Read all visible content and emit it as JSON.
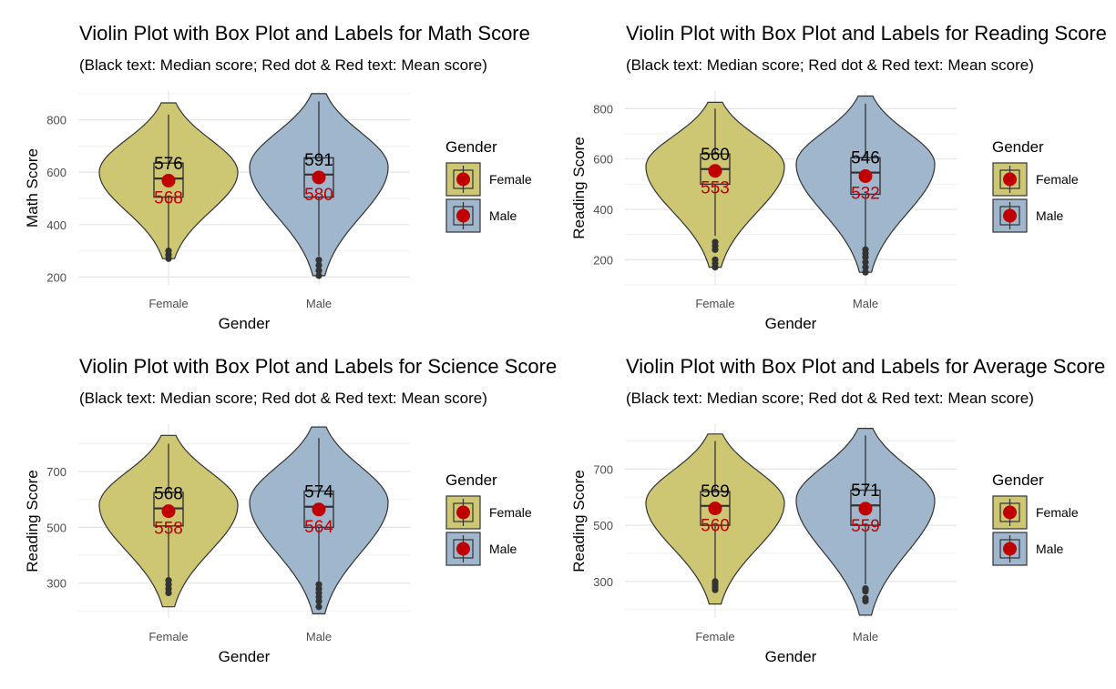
{
  "colors": {
    "female_fill": "#CDC673",
    "male_fill": "#9FB6CD",
    "mean": "#C00000",
    "outline": "#333333",
    "grid_major": "#E5E5E5",
    "grid_minor": "#F2F2F2"
  },
  "chart_data": [
    {
      "type": "violin",
      "title": "Violin Plot with Box Plot and Labels for Math Score",
      "subtitle": "(Black text: Median score; Red dot & Red text: Mean score)",
      "xlabel": "Gender",
      "ylabel": "Math Score",
      "categories": [
        "Female",
        "Male"
      ],
      "yticks": [
        200,
        400,
        600,
        800
      ],
      "ylim": [
        170,
        910
      ],
      "grid": true,
      "legend": {
        "title": "Gender",
        "position": "right",
        "entries": [
          "Female",
          "Male"
        ]
      },
      "series": [
        {
          "name": "Female",
          "median": 576,
          "median_label": "576",
          "mean": 568,
          "mean_label": "568",
          "q1": 505,
          "q3": 635,
          "whisker_low": 300,
          "whisker_high": 820,
          "min": 270,
          "max": 865,
          "outliers": [
            270,
            285,
            300
          ],
          "peak": 600
        },
        {
          "name": "Male",
          "median": 591,
          "median_label": "591",
          "mean": 580,
          "mean_label": "580",
          "q1": 505,
          "q3": 655,
          "whisker_low": 280,
          "whisker_high": 870,
          "min": 205,
          "max": 900,
          "outliers": [
            205,
            225,
            245,
            265
          ],
          "peak": 620
        }
      ]
    },
    {
      "type": "violin",
      "title": "Violin Plot with Box Plot and Labels for Reading Score",
      "subtitle": "(Black text: Median score; Red dot & Red text: Mean score)",
      "xlabel": "Gender",
      "ylabel": "Reading Score",
      "categories": [
        "Female",
        "Male"
      ],
      "yticks": [
        200,
        400,
        600,
        800
      ],
      "ylim": [
        100,
        870
      ],
      "grid": true,
      "legend": {
        "title": "Gender",
        "position": "right",
        "entries": [
          "Female",
          "Male"
        ]
      },
      "series": [
        {
          "name": "Female",
          "median": 560,
          "median_label": "560",
          "mean": 553,
          "mean_label": "553",
          "q1": 500,
          "q3": 620,
          "whisker_low": 295,
          "whisker_high": 800,
          "min": 170,
          "max": 825,
          "outliers": [
            170,
            185,
            200,
            240,
            255,
            270
          ],
          "peak": 570
        },
        {
          "name": "Male",
          "median": 546,
          "median_label": "546",
          "mean": 532,
          "mean_label": "532",
          "q1": 460,
          "q3": 605,
          "whisker_low": 240,
          "whisker_high": 820,
          "min": 150,
          "max": 850,
          "outliers": [
            150,
            170,
            190,
            210,
            225,
            240
          ],
          "peak": 580
        }
      ]
    },
    {
      "type": "violin",
      "title": "Violin Plot with Box Plot and Labels for Science Score",
      "subtitle": "(Black text: Median score; Red dot & Red text: Mean score)",
      "xlabel": "Gender",
      "ylabel": "Reading Score",
      "categories": [
        "Female",
        "Male"
      ],
      "yticks": [
        300,
        500,
        700
      ],
      "ylim": [
        175,
        870
      ],
      "grid": true,
      "legend": {
        "title": "Gender",
        "position": "right",
        "entries": [
          "Female",
          "Male"
        ]
      },
      "series": [
        {
          "name": "Female",
          "median": 568,
          "median_label": "568",
          "mean": 558,
          "mean_label": "558",
          "q1": 505,
          "q3": 625,
          "whisker_low": 320,
          "whisker_high": 800,
          "min": 215,
          "max": 830,
          "outliers": [
            265,
            280,
            295,
            310
          ],
          "peak": 580
        },
        {
          "name": "Male",
          "median": 574,
          "median_label": "574",
          "mean": 564,
          "mean_label": "564",
          "q1": 500,
          "q3": 630,
          "whisker_low": 300,
          "whisker_high": 820,
          "min": 190,
          "max": 860,
          "outliers": [
            215,
            235,
            250,
            265,
            280,
            295
          ],
          "peak": 590
        }
      ]
    },
    {
      "type": "violin",
      "title": "Violin Plot with Box Plot and Labels for Average Score",
      "subtitle": "(Black text: Median score; Red dot & Red text: Mean score)",
      "xlabel": "Gender",
      "ylabel": "Reading Score",
      "categories": [
        "Female",
        "Male"
      ],
      "yticks": [
        300,
        500,
        700
      ],
      "ylim": [
        170,
        860
      ],
      "grid": true,
      "legend": {
        "title": "Gender",
        "position": "right",
        "entries": [
          "Female",
          "Male"
        ]
      },
      "series": [
        {
          "name": "Female",
          "median": 569,
          "median_label": "569",
          "mean": 560,
          "mean_label": "560",
          "q1": 500,
          "q3": 620,
          "whisker_low": 310,
          "whisker_high": 800,
          "min": 220,
          "max": 825,
          "outliers": [
            270,
            280,
            290,
            300
          ],
          "peak": 580
        },
        {
          "name": "Male",
          "median": 571,
          "median_label": "571",
          "mean": 559,
          "mean_label": "559",
          "q1": 500,
          "q3": 625,
          "whisker_low": 290,
          "whisker_high": 820,
          "min": 180,
          "max": 845,
          "outliers": [
            230,
            240,
            265,
            275
          ],
          "peak": 590
        }
      ]
    }
  ]
}
